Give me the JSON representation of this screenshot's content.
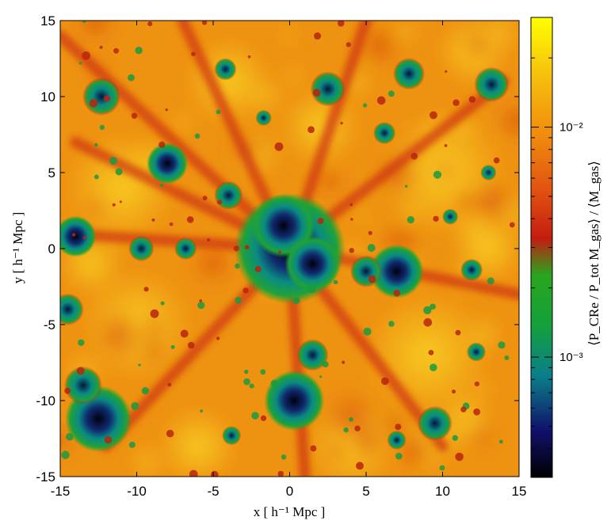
{
  "chart_data": {
    "type": "heatmap",
    "title": "",
    "xlabel": "x [ h⁻¹ Mpc ]",
    "ylabel": "y [ h⁻¹ Mpc ]",
    "xlim": [
      -15,
      15
    ],
    "ylim": [
      -15,
      15
    ],
    "x_ticks": [
      "-15",
      "-10",
      "-5",
      "0",
      "5",
      "10",
      "15"
    ],
    "y_ticks": [
      "15",
      "10",
      "5",
      "0",
      "-5",
      "-10",
      "-15"
    ],
    "x_tick_values": [
      -15,
      -10,
      -5,
      0,
      5,
      10,
      15
    ],
    "y_tick_values": [
      15,
      10,
      5,
      0,
      -5,
      -10,
      -15
    ],
    "colorbar": {
      "label": "⟨P_CRe / P_tot M_gas⟩ / ⟨M_gas⟩",
      "scale": "log",
      "range": [
        0.0003,
        0.03
      ],
      "ticks": [
        {
          "label": "10⁻²",
          "value": 0.01
        },
        {
          "label": "10⁻³",
          "value": 0.001
        }
      ],
      "colormap": [
        "#000000",
        "#10106a",
        "#0a7e8a",
        "#14a03c",
        "#2aa51e",
        "#c41c10",
        "#e05010",
        "#f08a0e",
        "#f7c20c",
        "#ffff00"
      ]
    },
    "features": {
      "description_of_structures": [
        {
          "name": "central cluster",
          "x": 0,
          "y": 0
        },
        {
          "name": "halo",
          "x": 2.5,
          "y": 10.5
        },
        {
          "name": "halo",
          "x": -12.3,
          "y": 10
        },
        {
          "name": "halo",
          "x": -8,
          "y": 5.6
        },
        {
          "name": "halo",
          "x": 7,
          "y": -1.5
        },
        {
          "name": "halo",
          "x": 0.3,
          "y": -10
        },
        {
          "name": "halo",
          "x": -12.5,
          "y": -11.2
        },
        {
          "name": "halo",
          "x": 9.5,
          "y": -11.5
        },
        {
          "name": "halo",
          "x": 13.2,
          "y": 10.8
        },
        {
          "name": "halo",
          "x": 7.8,
          "y": 11.5
        },
        {
          "name": "halo",
          "x": -4,
          "y": 3.5
        }
      ]
    }
  }
}
